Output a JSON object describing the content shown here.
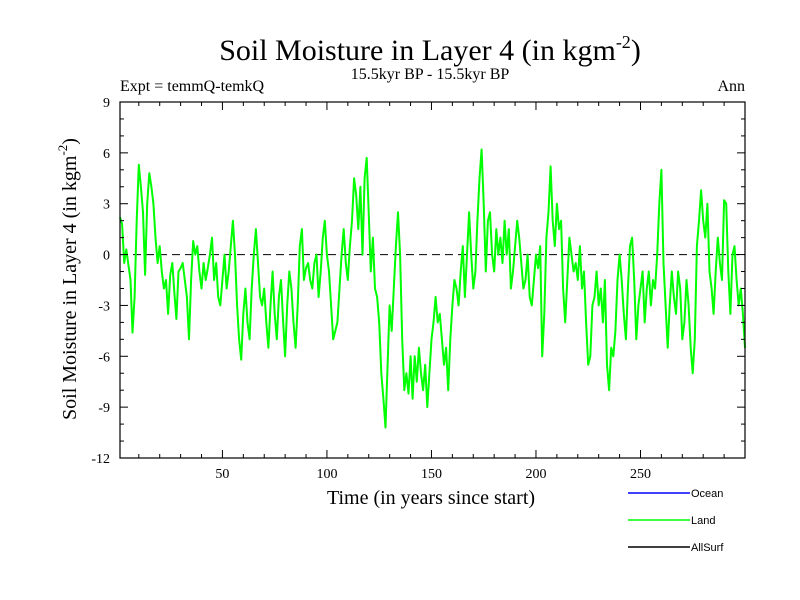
{
  "chart_data": {
    "type": "line",
    "title": "Soil Moisture in Layer 4 (in kgm",
    "title_sup": "-2",
    "title_close": ")",
    "subtitle": "15.5kyr BP - 15.5kyr BP",
    "left_label": "Expt = temmQ-temkQ",
    "right_label": "Ann",
    "xlabel": "Time (in years since start)",
    "ylabel": "Soil Moisture in Layer 4 (in kgm",
    "ylabel_sup": "-2",
    "ylabel_close": ")",
    "xlim": [
      1,
      300
    ],
    "ylim": [
      -12,
      9
    ],
    "x_ticks": [
      "50",
      "100",
      "150",
      "200",
      "250"
    ],
    "y_ticks": [
      "9",
      "6",
      "3",
      "0",
      "-3",
      "-6",
      "-9",
      "-12"
    ],
    "reference_line": 0,
    "legend": [
      {
        "name": "Ocean",
        "color": "#0000ff"
      },
      {
        "name": "Land",
        "color": "#00ff00"
      },
      {
        "name": "AllSurf",
        "color": "#000000"
      }
    ],
    "series": [
      {
        "name": "Land",
        "color": "#00ff00",
        "anchors": [
          [
            1,
            2.2
          ],
          [
            2,
            1.8
          ],
          [
            3,
            -0.5
          ],
          [
            4,
            0.3
          ],
          [
            6,
            -1.5
          ],
          [
            7,
            -4.6
          ],
          [
            8,
            -2.5
          ],
          [
            9,
            2.0
          ],
          [
            10,
            5.3
          ],
          [
            11,
            4.0
          ],
          [
            12,
            2.5
          ],
          [
            13,
            -1.2
          ],
          [
            14,
            3.0
          ],
          [
            15,
            4.8
          ],
          [
            16,
            4.0
          ],
          [
            17,
            3.0
          ],
          [
            18,
            1.0
          ],
          [
            19,
            -0.5
          ],
          [
            20,
            0.5
          ],
          [
            21,
            -1.0
          ],
          [
            22,
            -2.0
          ],
          [
            23,
            -1.5
          ],
          [
            24,
            -3.5
          ],
          [
            25,
            -1.2
          ],
          [
            26,
            -0.5
          ],
          [
            27,
            -2.2
          ],
          [
            28,
            -3.8
          ],
          [
            29,
            -1.0
          ],
          [
            30,
            -0.8
          ],
          [
            31,
            -0.5
          ],
          [
            32,
            -1.5
          ],
          [
            33,
            -2.5
          ],
          [
            34,
            -5.0
          ],
          [
            35,
            -1.5
          ],
          [
            36,
            0.8
          ],
          [
            37,
            0.0
          ],
          [
            38,
            0.5
          ],
          [
            39,
            -1.0
          ],
          [
            40,
            -2.0
          ],
          [
            41,
            -0.5
          ],
          [
            42,
            -1.5
          ],
          [
            43,
            -0.8
          ],
          [
            44,
            0.0
          ],
          [
            45,
            1.0
          ],
          [
            46,
            -1.5
          ],
          [
            47,
            -0.5
          ],
          [
            48,
            -2.5
          ],
          [
            49,
            -3.0
          ],
          [
            50,
            -1.5
          ],
          [
            51,
            0.0
          ],
          [
            52,
            -2.0
          ],
          [
            53,
            -1.0
          ],
          [
            54,
            0.5
          ],
          [
            55,
            2.0
          ],
          [
            56,
            0.0
          ],
          [
            57,
            -3.0
          ],
          [
            58,
            -5.0
          ],
          [
            59,
            -6.2
          ],
          [
            60,
            -3.5
          ],
          [
            61,
            -2.0
          ],
          [
            62,
            -4.0
          ],
          [
            63,
            -5.0
          ],
          [
            64,
            -2.0
          ],
          [
            65,
            0.0
          ],
          [
            66,
            1.5
          ],
          [
            67,
            -0.5
          ],
          [
            68,
            -2.5
          ],
          [
            69,
            -3.0
          ],
          [
            70,
            -2.0
          ],
          [
            71,
            -4.0
          ],
          [
            72,
            -5.5
          ],
          [
            73,
            -3.0
          ],
          [
            74,
            -1.0
          ],
          [
            75,
            -3.5
          ],
          [
            76,
            -5.0
          ],
          [
            77,
            -2.5
          ],
          [
            78,
            -1.5
          ],
          [
            79,
            -3.8
          ],
          [
            80,
            -6.0
          ],
          [
            81,
            -3.0
          ],
          [
            82,
            -1.0
          ],
          [
            83,
            -2.0
          ],
          [
            84,
            -4.0
          ],
          [
            85,
            -5.5
          ],
          [
            86,
            -3.0
          ],
          [
            87,
            0.5
          ],
          [
            88,
            1.5
          ],
          [
            89,
            -1.5
          ],
          [
            90,
            -0.8
          ],
          [
            91,
            -0.5
          ],
          [
            92,
            -1.5
          ],
          [
            93,
            -2.0
          ],
          [
            94,
            -0.5
          ],
          [
            95,
            0.0
          ],
          [
            96,
            -2.5
          ],
          [
            97,
            -1.0
          ],
          [
            98,
            1.0
          ],
          [
            99,
            2.0
          ],
          [
            100,
            0.0
          ],
          [
            101,
            -1.0
          ],
          [
            102,
            -3.0
          ],
          [
            103,
            -5.0
          ],
          [
            104,
            -4.5
          ],
          [
            105,
            -4.0
          ],
          [
            106,
            -2.0
          ],
          [
            107,
            0.0
          ],
          [
            108,
            1.5
          ],
          [
            109,
            -0.5
          ],
          [
            110,
            -1.5
          ],
          [
            111,
            0.5
          ],
          [
            112,
            2.0
          ],
          [
            113,
            4.5
          ],
          [
            114,
            3.5
          ],
          [
            115,
            1.5
          ],
          [
            116,
            4.0
          ],
          [
            117,
            0.0
          ],
          [
            118,
            4.5
          ],
          [
            119,
            5.7
          ],
          [
            120,
            2.5
          ],
          [
            121,
            -1.0
          ],
          [
            122,
            1.0
          ],
          [
            123,
            -2.0
          ],
          [
            124,
            -2.5
          ],
          [
            125,
            -4.0
          ],
          [
            126,
            -7.0
          ],
          [
            127,
            -8.5
          ],
          [
            128,
            -10.2
          ],
          [
            129,
            -6.5
          ],
          [
            130,
            -3.0
          ],
          [
            131,
            -4.5
          ],
          [
            132,
            -2.0
          ],
          [
            133,
            0.5
          ],
          [
            134,
            2.5
          ],
          [
            135,
            0.0
          ],
          [
            136,
            -5.0
          ],
          [
            137,
            -8.0
          ],
          [
            138,
            -7.0
          ],
          [
            139,
            -8.2
          ],
          [
            140,
            -6.0
          ],
          [
            141,
            -8.5
          ],
          [
            142,
            -6.0
          ],
          [
            143,
            -7.5
          ],
          [
            144,
            -5.5
          ],
          [
            145,
            -7.0
          ],
          [
            146,
            -8.0
          ],
          [
            147,
            -6.5
          ],
          [
            148,
            -9.0
          ],
          [
            149,
            -7.0
          ],
          [
            150,
            -5.0
          ],
          [
            151,
            -4.0
          ],
          [
            152,
            -2.5
          ],
          [
            153,
            -4.0
          ],
          [
            154,
            -3.5
          ],
          [
            155,
            -5.0
          ],
          [
            156,
            -6.5
          ],
          [
            157,
            -5.5
          ],
          [
            158,
            -8.0
          ],
          [
            159,
            -5.0
          ],
          [
            160,
            -3.0
          ],
          [
            161,
            -1.5
          ],
          [
            162,
            -2.0
          ],
          [
            163,
            -3.0
          ],
          [
            164,
            -1.0
          ],
          [
            165,
            0.5
          ],
          [
            166,
            -2.5
          ],
          [
            167,
            0.0
          ],
          [
            168,
            2.5
          ],
          [
            169,
            0.0
          ],
          [
            170,
            -2.0
          ],
          [
            171,
            -1.0
          ],
          [
            172,
            2.0
          ],
          [
            173,
            4.5
          ],
          [
            174,
            6.2
          ],
          [
            175,
            3.0
          ],
          [
            176,
            -1.0
          ],
          [
            177,
            2.0
          ],
          [
            178,
            2.5
          ],
          [
            179,
            0.0
          ],
          [
            180,
            -1.0
          ],
          [
            181,
            1.5
          ],
          [
            182,
            0.0
          ],
          [
            183,
            1.0
          ],
          [
            184,
            -0.5
          ],
          [
            185,
            2.0
          ],
          [
            186,
            0.0
          ],
          [
            187,
            1.5
          ],
          [
            188,
            -2.0
          ],
          [
            189,
            -1.0
          ],
          [
            190,
            0.5
          ],
          [
            191,
            2.0
          ],
          [
            192,
            1.0
          ],
          [
            193,
            -0.5
          ],
          [
            194,
            -2.0
          ],
          [
            195,
            -1.5
          ],
          [
            196,
            0.0
          ],
          [
            197,
            -2.5
          ],
          [
            198,
            -3.0
          ],
          [
            199,
            -1.5
          ],
          [
            200,
            0.0
          ],
          [
            201,
            -0.8
          ],
          [
            202,
            0.5
          ],
          [
            203,
            -6.0
          ],
          [
            204,
            -3.5
          ],
          [
            205,
            1.0
          ],
          [
            206,
            2.5
          ],
          [
            207,
            5.2
          ],
          [
            208,
            2.0
          ],
          [
            209,
            0.5
          ],
          [
            210,
            3.0
          ],
          [
            211,
            1.5
          ],
          [
            212,
            2.0
          ],
          [
            213,
            -2.0
          ],
          [
            214,
            -4.0
          ],
          [
            215,
            -1.5
          ],
          [
            216,
            1.0
          ],
          [
            217,
            0.0
          ],
          [
            218,
            -1.0
          ],
          [
            219,
            -0.5
          ],
          [
            220,
            -1.5
          ],
          [
            221,
            0.5
          ],
          [
            222,
            -2.0
          ],
          [
            223,
            -1.0
          ],
          [
            224,
            -4.0
          ],
          [
            225,
            -6.5
          ],
          [
            226,
            -6.0
          ],
          [
            227,
            -3.0
          ],
          [
            228,
            -2.5
          ],
          [
            229,
            -1.0
          ],
          [
            230,
            -3.0
          ],
          [
            231,
            -2.0
          ],
          [
            232,
            -4.0
          ],
          [
            233,
            -1.5
          ],
          [
            234,
            -6.5
          ],
          [
            235,
            -8.0
          ],
          [
            236,
            -5.5
          ],
          [
            237,
            -6.0
          ],
          [
            238,
            -4.5
          ],
          [
            239,
            -1.5
          ],
          [
            240,
            0.0
          ],
          [
            241,
            -1.5
          ],
          [
            242,
            -3.5
          ],
          [
            243,
            -5.0
          ],
          [
            244,
            -2.0
          ],
          [
            245,
            0.5
          ],
          [
            246,
            1.0
          ],
          [
            247,
            -1.5
          ],
          [
            248,
            -5.0
          ],
          [
            249,
            -3.0
          ],
          [
            250,
            -2.0
          ],
          [
            251,
            -1.0
          ],
          [
            252,
            -4.0
          ],
          [
            253,
            -2.0
          ],
          [
            254,
            -1.0
          ],
          [
            255,
            -3.0
          ],
          [
            256,
            -1.5
          ],
          [
            257,
            -2.0
          ],
          [
            258,
            0.0
          ],
          [
            259,
            3.0
          ],
          [
            260,
            5.0
          ],
          [
            261,
            -0.5
          ],
          [
            262,
            -3.0
          ],
          [
            263,
            -5.5
          ],
          [
            264,
            -3.0
          ],
          [
            265,
            -1.0
          ],
          [
            266,
            -2.5
          ],
          [
            267,
            -3.5
          ],
          [
            268,
            -1.0
          ],
          [
            269,
            -2.0
          ],
          [
            270,
            -5.0
          ],
          [
            271,
            -4.0
          ],
          [
            272,
            -1.5
          ],
          [
            273,
            -3.0
          ],
          [
            274,
            -5.5
          ],
          [
            275,
            -7.0
          ],
          [
            276,
            -5.0
          ],
          [
            277,
            0.5
          ],
          [
            278,
            2.0
          ],
          [
            279,
            3.8
          ],
          [
            280,
            2.0
          ],
          [
            281,
            1.0
          ],
          [
            282,
            3.0
          ],
          [
            283,
            -1.0
          ],
          [
            284,
            -2.0
          ],
          [
            285,
            -3.5
          ],
          [
            286,
            -1.0
          ],
          [
            287,
            1.0
          ],
          [
            288,
            -0.5
          ],
          [
            289,
            -1.5
          ],
          [
            290,
            3.2
          ],
          [
            291,
            3.0
          ],
          [
            292,
            -1.0
          ],
          [
            293,
            -3.5
          ],
          [
            294,
            0.0
          ],
          [
            295,
            0.5
          ],
          [
            296,
            -1.5
          ],
          [
            297,
            -3.0
          ],
          [
            298,
            -2.0
          ],
          [
            299,
            -3.5
          ],
          [
            300,
            -5.5
          ]
        ]
      }
    ]
  }
}
